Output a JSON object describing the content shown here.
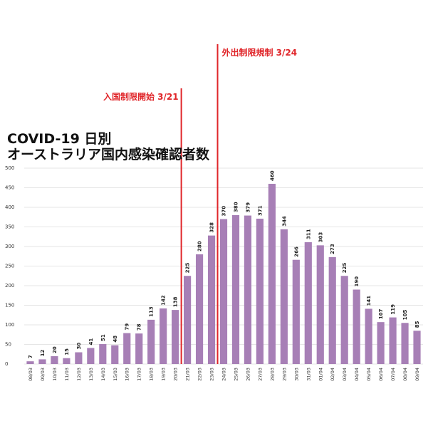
{
  "title_lines": [
    "COVID-19 日別",
    "オーストラリア国内感染確認者数"
  ],
  "colors": {
    "bar": "#a77fb6",
    "marker": "#e0262a",
    "grid": "#e6e6e6",
    "text": "#333333"
  },
  "chart_data": {
    "type": "bar",
    "title": "COVID-19 日別 オーストラリア国内感染確認者数",
    "xlabel": "",
    "ylabel": "",
    "ylim": [
      0,
      500
    ],
    "yticks": [
      0,
      50,
      100,
      150,
      200,
      250,
      300,
      350,
      400,
      450,
      500
    ],
    "grid": true,
    "categories": [
      "08/03",
      "09/03",
      "10/03",
      "11/03",
      "12/03",
      "13/03",
      "14/03",
      "15/03",
      "16/03",
      "17/03",
      "18/03",
      "19/03",
      "20/03",
      "21/03",
      "22/03",
      "23/03",
      "24/03",
      "25/03",
      "26/03",
      "27/03",
      "28/03",
      "29/03",
      "30/03",
      "31/03",
      "01/04",
      "02/04",
      "03/04",
      "04/04",
      "05/04",
      "06/04",
      "07/04",
      "08/04",
      "09/04"
    ],
    "values": [
      7,
      12,
      20,
      15,
      30,
      41,
      51,
      48,
      79,
      78,
      113,
      142,
      138,
      225,
      280,
      328,
      370,
      380,
      379,
      371,
      460,
      344,
      266,
      311,
      303,
      273,
      225,
      190,
      141,
      107,
      119,
      105,
      85
    ],
    "annotations": [
      {
        "text": "入国制限開始 3/21",
        "after_category": "20/03"
      },
      {
        "text": "外出制限規制 3/24",
        "after_category": "23/03"
      }
    ]
  }
}
